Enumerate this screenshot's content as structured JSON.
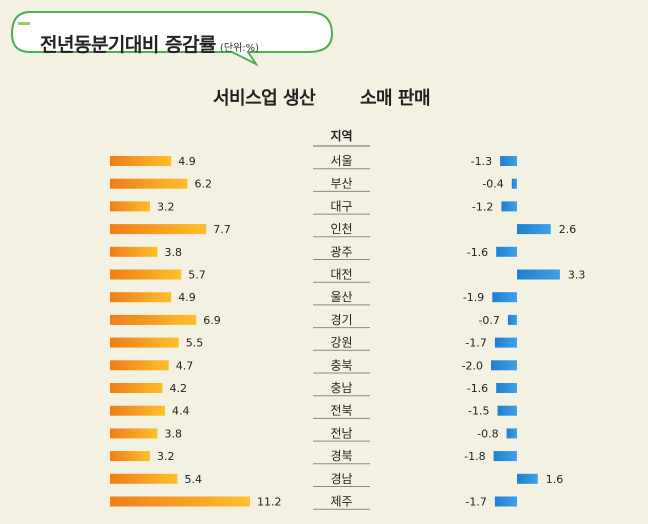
{
  "header": {
    "title": "전년동분기대비 증감률",
    "unit": "(단위:%)"
  },
  "colors": {
    "background": "#f3f2e2",
    "service_bar": "#f5a31a",
    "retail_bar": "#1e7fd0",
    "bubble_border": "#4caf50"
  },
  "chart_data": [
    {
      "type": "bar",
      "title": "서비스업 생산",
      "column_header": "지역",
      "categories": [
        "서울",
        "부산",
        "대구",
        "인천",
        "광주",
        "대전",
        "울산",
        "경기",
        "강원",
        "충북",
        "충남",
        "전북",
        "전남",
        "경북",
        "경남",
        "제주"
      ],
      "series": [
        {
          "values": [
            4.9,
            6.2,
            3.2,
            7.7,
            3.8,
            5.7,
            4.9,
            6.9,
            5.5,
            4.7,
            4.2,
            4.4,
            3.8,
            3.2,
            5.4,
            11.2
          ]
        }
      ]
    },
    {
      "type": "bar",
      "title": "소매 판매",
      "column_header": "지역",
      "categories": [
        "서울",
        "부산",
        "대구",
        "인천",
        "광주",
        "대전",
        "울산",
        "경기",
        "강원",
        "충북",
        "충남",
        "전북",
        "전남",
        "경북",
        "경남",
        "제주"
      ],
      "series": [
        {
          "values": [
            -1.3,
            -0.4,
            -1.2,
            2.6,
            -1.6,
            3.3,
            -1.9,
            -0.7,
            -1.7,
            -2.0,
            -1.6,
            -1.5,
            -0.8,
            -1.8,
            1.6,
            -1.7
          ]
        }
      ]
    }
  ]
}
